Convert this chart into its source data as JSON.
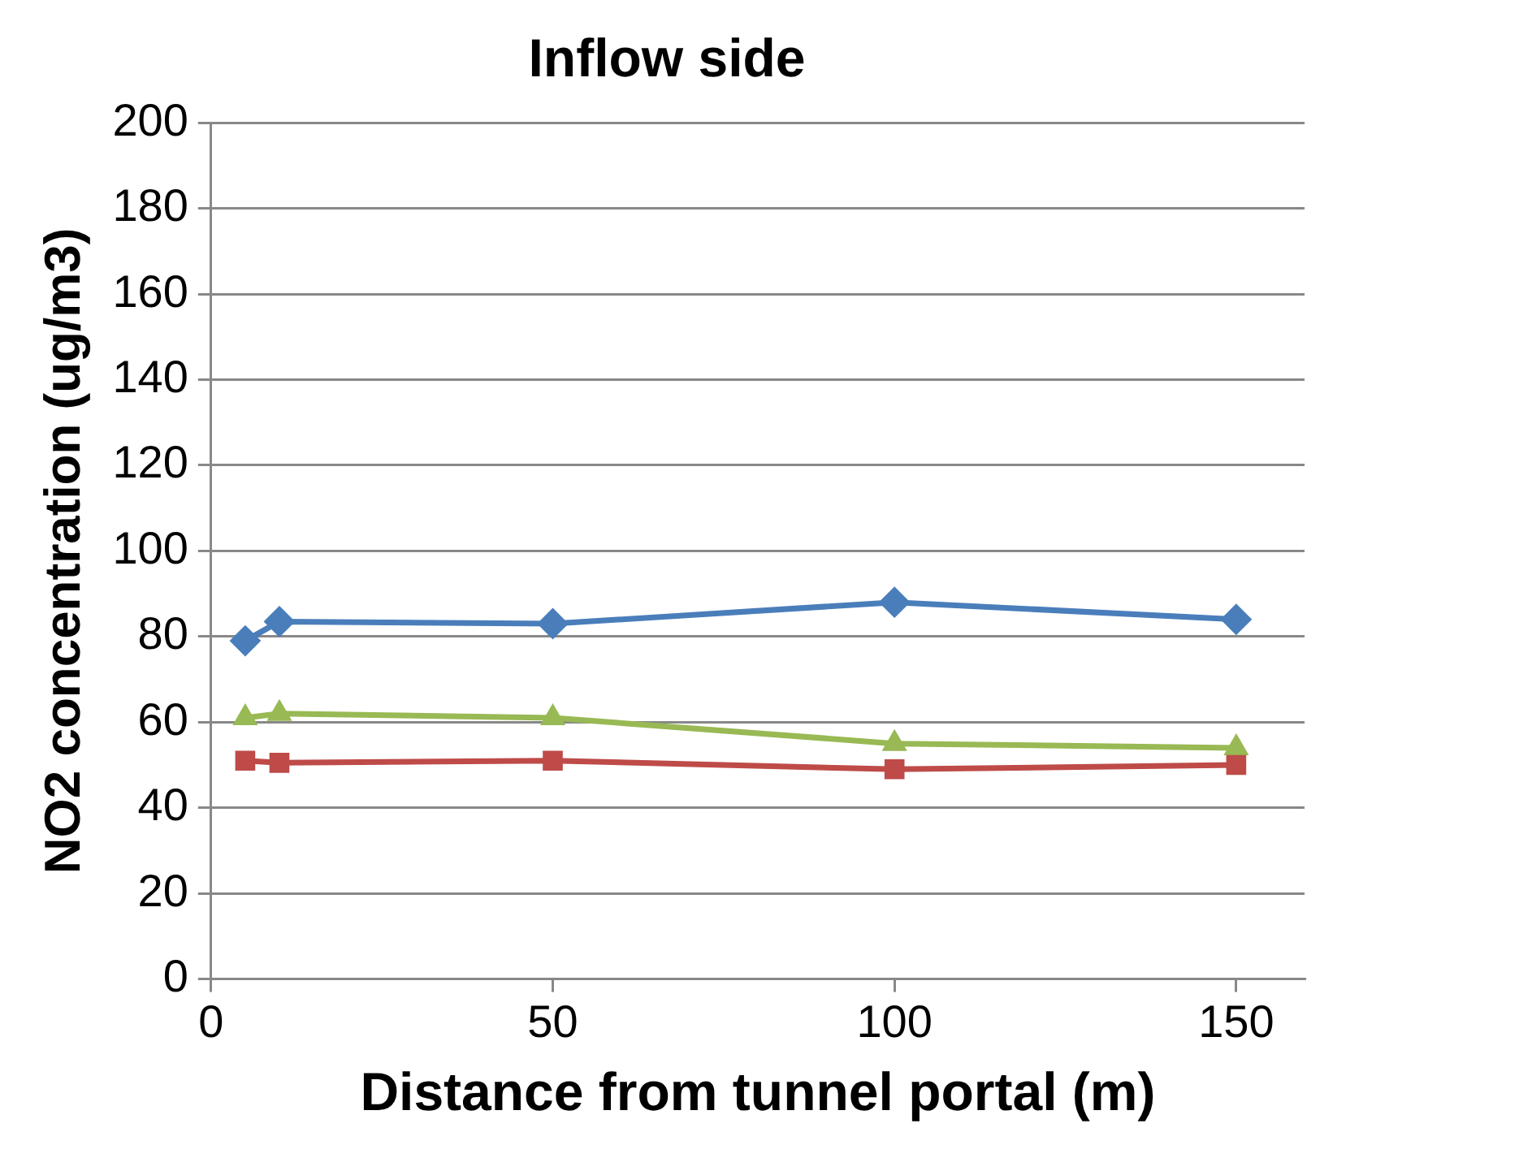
{
  "chart_data": {
    "type": "line",
    "title": "Inflow side",
    "xlabel": "Distance from tunnel portal (m)",
    "ylabel": "NO2 concentration (ug/m3)",
    "x": [
      5,
      10,
      50,
      100,
      150
    ],
    "series": [
      {
        "color": "#4a7ebb",
        "marker": "diamond",
        "values": [
          79,
          83.5,
          83,
          88,
          84
        ]
      },
      {
        "color": "#be4b48",
        "marker": "square",
        "values": [
          51,
          50.5,
          51,
          49,
          50
        ]
      },
      {
        "color": "#98b954",
        "marker": "triangle",
        "values": [
          61,
          62,
          61,
          55,
          54
        ]
      }
    ],
    "xlim": [
      0,
      160
    ],
    "xticks": [
      0,
      50,
      100,
      150
    ],
    "ylim": [
      0,
      200
    ],
    "yticks": [
      0,
      20,
      40,
      60,
      80,
      100,
      120,
      140,
      160,
      180,
      200
    ],
    "grid": "y",
    "legend": false,
    "line_style": "solid"
  }
}
